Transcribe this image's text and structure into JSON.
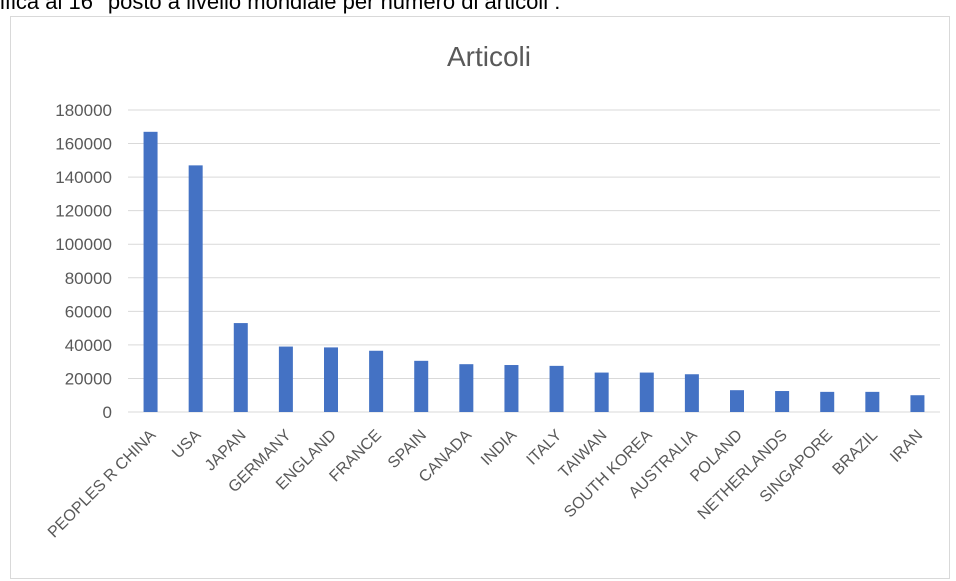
{
  "caption": "ifica al 16° posto a livello mondiale per numero di articoli :",
  "chart_data": {
    "type": "bar",
    "title": "Articoli",
    "xlabel": "",
    "ylabel": "",
    "categories": [
      "PEOPLES R CHINA",
      "USA",
      "JAPAN",
      "GERMANY",
      "ENGLAND",
      "FRANCE",
      "SPAIN",
      "CANADA",
      "INDIA",
      "ITALY",
      "TAIWAN",
      "SOUTH KOREA",
      "AUSTRALIA",
      "POLAND",
      "NETHERLANDS",
      "SINGAPORE",
      "BRAZIL",
      "IRAN"
    ],
    "values": [
      167000,
      147000,
      53000,
      39000,
      38500,
      36500,
      30500,
      28500,
      28000,
      27500,
      23500,
      23500,
      22500,
      13000,
      12500,
      12000,
      12000,
      10000
    ],
    "ylim": [
      0,
      180000
    ],
    "yticks": [
      0,
      20000,
      40000,
      60000,
      80000,
      100000,
      120000,
      140000,
      160000,
      180000
    ],
    "grid": true,
    "legend": "none",
    "bar_color": "#4472C4",
    "grid_color": "#d9d9d9"
  }
}
